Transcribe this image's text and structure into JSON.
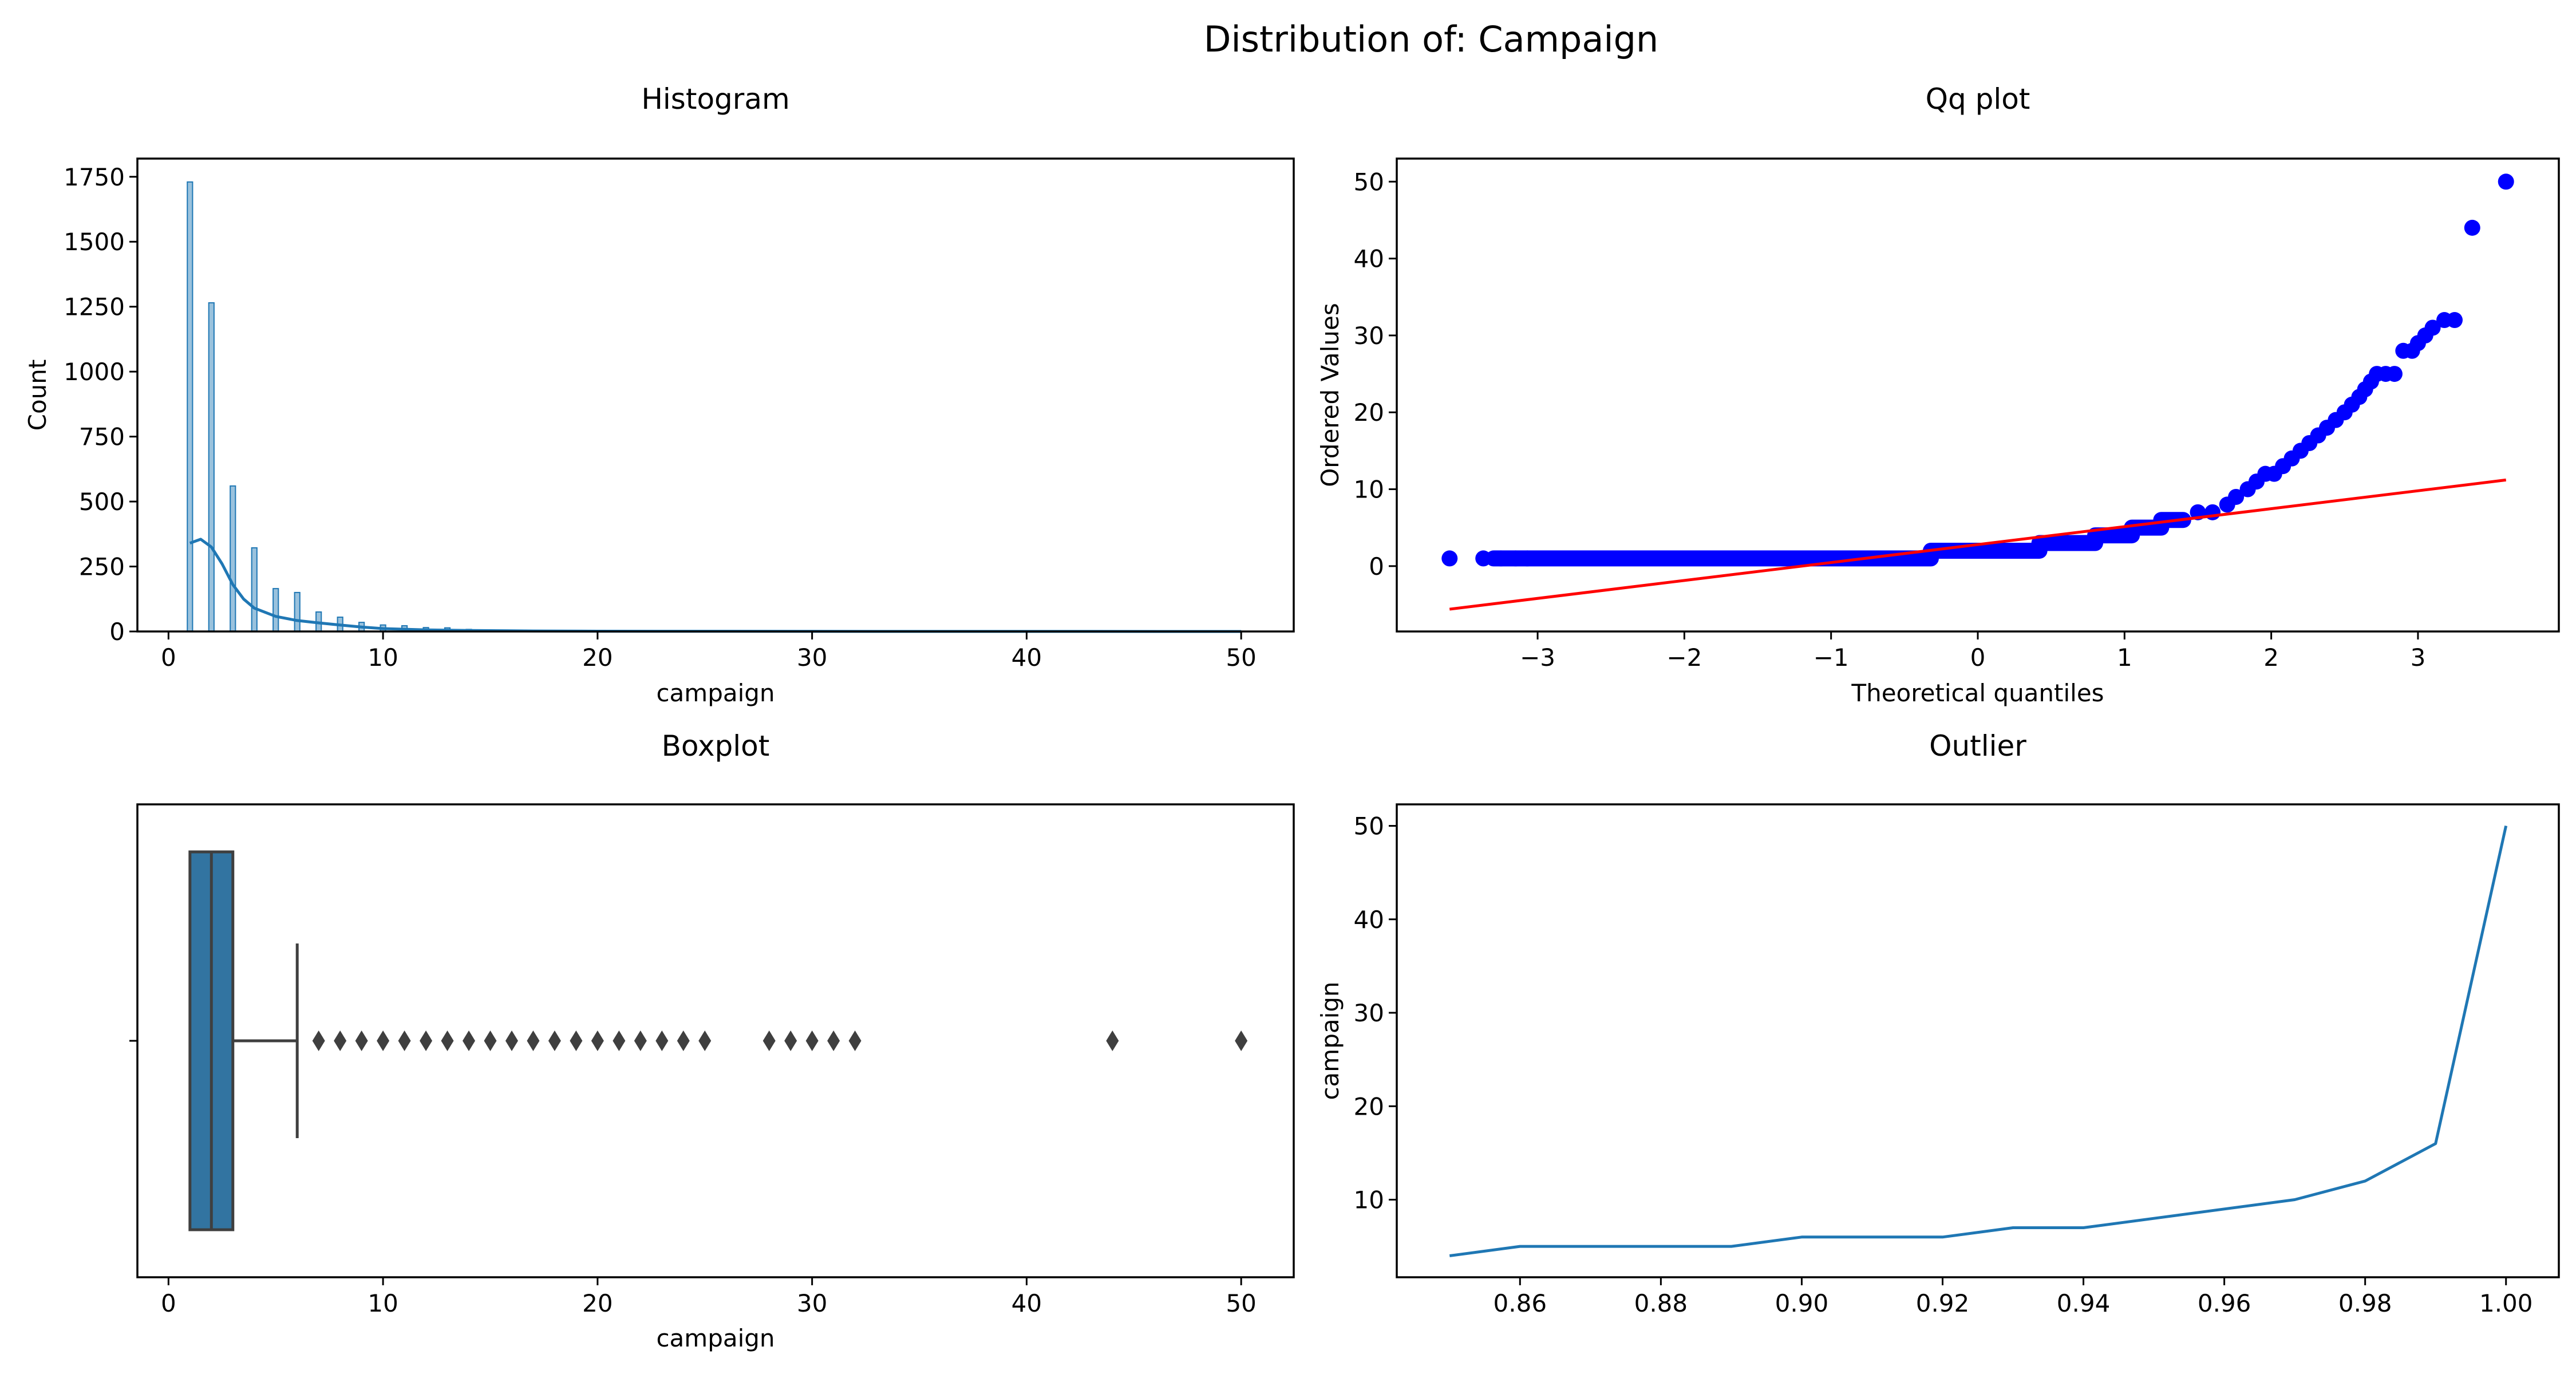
{
  "figure": {
    "title": "Distribution of: Campaign"
  },
  "chart_data": [
    {
      "type": "bar",
      "panel": "histogram",
      "title": "Histogram",
      "xlabel": "campaign",
      "ylabel": "Count",
      "xlim": [
        -1.45,
        52.45
      ],
      "ylim": [
        0,
        1820
      ],
      "xticks": [
        0,
        10,
        20,
        30,
        40,
        50
      ],
      "yticks": [
        0,
        250,
        500,
        750,
        1000,
        1250,
        1500,
        1750
      ],
      "bin_width": 0.245,
      "bins": [
        {
          "x": 1,
          "count": 1730
        },
        {
          "x": 2,
          "count": 1265
        },
        {
          "x": 3,
          "count": 560
        },
        {
          "x": 4,
          "count": 322
        },
        {
          "x": 5,
          "count": 165
        },
        {
          "x": 6,
          "count": 150
        },
        {
          "x": 7,
          "count": 75
        },
        {
          "x": 8,
          "count": 55
        },
        {
          "x": 9,
          "count": 35
        },
        {
          "x": 10,
          "count": 25
        },
        {
          "x": 11,
          "count": 22
        },
        {
          "x": 12,
          "count": 15
        },
        {
          "x": 13,
          "count": 14
        },
        {
          "x": 14,
          "count": 8
        },
        {
          "x": 15,
          "count": 6
        },
        {
          "x": 16,
          "count": 5
        },
        {
          "x": 17,
          "count": 4
        },
        {
          "x": 18,
          "count": 4
        },
        {
          "x": 19,
          "count": 3
        },
        {
          "x": 20,
          "count": 3
        },
        {
          "x": 21,
          "count": 2
        },
        {
          "x": 22,
          "count": 2
        },
        {
          "x": 23,
          "count": 2
        },
        {
          "x": 24,
          "count": 2
        },
        {
          "x": 25,
          "count": 2
        },
        {
          "x": 28,
          "count": 1
        },
        {
          "x": 29,
          "count": 1
        },
        {
          "x": 30,
          "count": 1
        },
        {
          "x": 31,
          "count": 1
        },
        {
          "x": 32,
          "count": 1
        },
        {
          "x": 44,
          "count": 1
        },
        {
          "x": 50,
          "count": 1
        }
      ],
      "kde": {
        "x": [
          1,
          1.5,
          2,
          2.5,
          3,
          3.5,
          4,
          5,
          6,
          7,
          8,
          9,
          10,
          12,
          14,
          17,
          20,
          30,
          40,
          50
        ],
        "y": [
          340,
          355,
          325,
          260,
          180,
          125,
          90,
          58,
          42,
          33,
          25,
          17,
          11,
          6,
          4,
          2,
          1,
          0.5,
          0.2,
          0.1
        ]
      },
      "color": "#1f77b4"
    },
    {
      "type": "scatter",
      "panel": "qq",
      "title": "Qq plot",
      "xlabel": "Theoretical quantiles",
      "ylabel": "Ordered Values",
      "xlim": [
        -3.96,
        3.96
      ],
      "ylim": [
        -8.5,
        53
      ],
      "xticks": [
        -3,
        -2,
        -1,
        0,
        1,
        2,
        3
      ],
      "yticks": [
        0,
        10,
        20,
        30,
        40,
        50
      ],
      "segments": [
        {
          "x0": -3.3,
          "x1": -0.32,
          "y": 1
        },
        {
          "x0": -0.32,
          "x1": 0.42,
          "y": 2
        },
        {
          "x0": 0.42,
          "x1": 0.8,
          "y": 3
        },
        {
          "x0": 0.8,
          "x1": 1.05,
          "y": 4
        },
        {
          "x0": 1.05,
          "x1": 1.25,
          "y": 5
        },
        {
          "x0": 1.25,
          "x1": 1.4,
          "y": 6
        }
      ],
      "points": [
        [
          -3.6,
          1
        ],
        [
          -3.37,
          1
        ],
        [
          -3.25,
          1
        ],
        [
          -3.15,
          1
        ],
        [
          -3.07,
          1
        ],
        [
          1.5,
          7
        ],
        [
          1.6,
          7
        ],
        [
          1.7,
          8
        ],
        [
          1.76,
          9
        ],
        [
          1.84,
          10
        ],
        [
          1.9,
          11
        ],
        [
          1.96,
          12
        ],
        [
          2.02,
          12
        ],
        [
          2.08,
          13
        ],
        [
          2.14,
          14
        ],
        [
          2.2,
          15
        ],
        [
          2.26,
          16
        ],
        [
          2.32,
          17
        ],
        [
          2.38,
          18
        ],
        [
          2.44,
          19
        ],
        [
          2.5,
          20
        ],
        [
          2.55,
          21
        ],
        [
          2.6,
          22
        ],
        [
          2.64,
          23
        ],
        [
          2.68,
          24
        ],
        [
          2.72,
          25
        ],
        [
          2.78,
          25
        ],
        [
          2.84,
          25
        ],
        [
          2.9,
          28
        ],
        [
          2.96,
          28
        ],
        [
          3.0,
          29
        ],
        [
          3.05,
          30
        ],
        [
          3.1,
          31
        ],
        [
          3.18,
          32
        ],
        [
          3.25,
          32
        ],
        [
          3.37,
          44
        ],
        [
          3.6,
          50
        ]
      ],
      "fit_line": {
        "x": [
          -3.6,
          3.6
        ],
        "y": [
          -5.6,
          11.2
        ]
      },
      "point_color": "#0000ff",
      "line_color": "#ff0000"
    },
    {
      "type": "boxplot",
      "panel": "boxplot",
      "title": "Boxplot",
      "xlabel": "campaign",
      "xlim": [
        -1.45,
        52.45
      ],
      "xticks": [
        0,
        10,
        20,
        30,
        40,
        50
      ],
      "ytick_labels": [
        ""
      ],
      "box": {
        "whisker_low": 1,
        "q1": 1,
        "median": 2,
        "q3": 3,
        "whisker_high": 6
      },
      "outliers": [
        7,
        8,
        9,
        10,
        11,
        12,
        13,
        14,
        15,
        16,
        17,
        18,
        19,
        20,
        21,
        22,
        23,
        24,
        25,
        28,
        29,
        30,
        31,
        32,
        44,
        50
      ],
      "box_color": "#3274a1",
      "line_color": "#3f3f3f"
    },
    {
      "type": "line",
      "panel": "outlier",
      "title": "Outlier",
      "xlabel": "",
      "ylabel": "campaign",
      "xlim": [
        0.8425,
        1.0075
      ],
      "ylim": [
        1.7,
        52.3
      ],
      "xticks": [
        0.86,
        0.88,
        0.9,
        0.92,
        0.94,
        0.96,
        0.98,
        1.0
      ],
      "xtick_labels": [
        "0.86",
        "0.88",
        "0.90",
        "0.92",
        "0.94",
        "0.96",
        "0.98",
        "1.00"
      ],
      "yticks": [
        10,
        20,
        30,
        40,
        50
      ],
      "x": [
        0.85,
        0.86,
        0.87,
        0.88,
        0.89,
        0.9,
        0.91,
        0.92,
        0.93,
        0.94,
        0.95,
        0.96,
        0.97,
        0.98,
        0.99,
        1.0
      ],
      "y": [
        4,
        5,
        5,
        5,
        5,
        6,
        6,
        6,
        7,
        7,
        8,
        9,
        10,
        12,
        16,
        50
      ],
      "color": "#1f77b4"
    }
  ]
}
